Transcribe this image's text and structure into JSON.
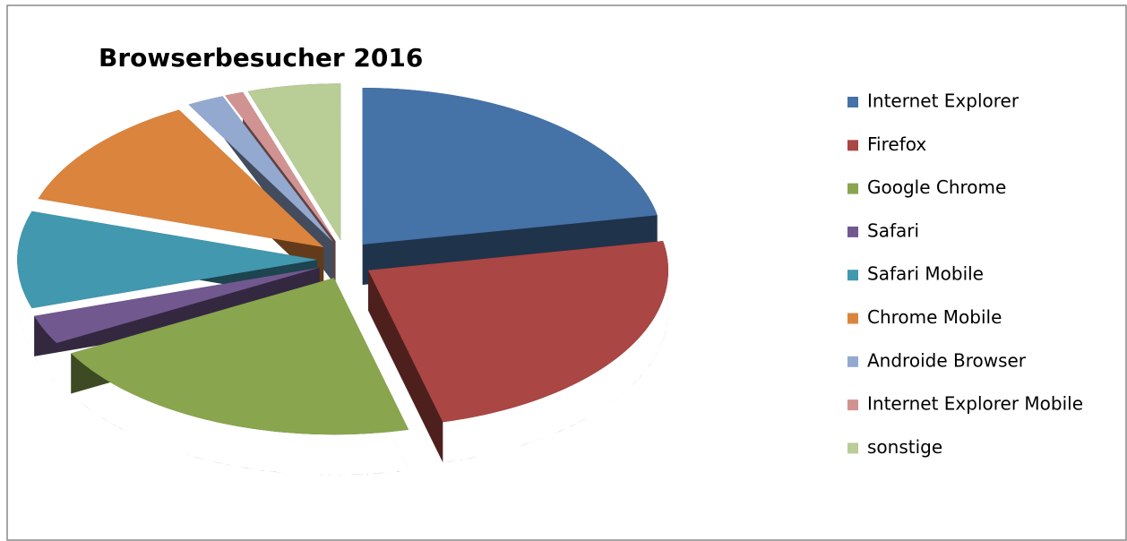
{
  "chart_data": {
    "type": "pie3d",
    "title": "Browserbesucher 2016",
    "categories": [
      "Internet Explorer",
      "Firefox",
      "Google Chrome",
      "Safari",
      "Safari Mobile",
      "Chrome Mobile",
      "Androide Browser",
      "Internet Explorer Mobile",
      "sonstige"
    ],
    "values": [
      22,
      24,
      21,
      3,
      10,
      12,
      2,
      1,
      5
    ],
    "colors": [
      "#4572a7",
      "#aa4643",
      "#89a54e",
      "#71588f",
      "#4198af",
      "#db843d",
      "#93a9cf",
      "#d19392",
      "#b9cd96"
    ],
    "legend": "right"
  }
}
